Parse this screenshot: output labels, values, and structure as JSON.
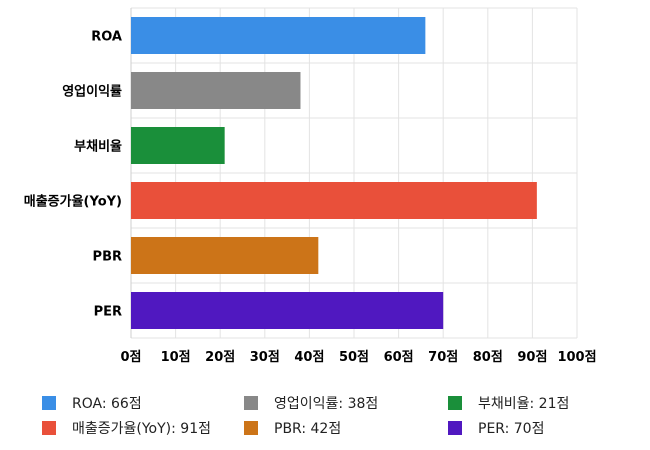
{
  "chart_data": {
    "type": "bar",
    "orientation": "horizontal",
    "categories": [
      "ROA",
      "영업이익률",
      "부채비율",
      "매출증가율(YoY)",
      "PBR",
      "PER"
    ],
    "values": [
      66,
      38,
      21,
      91,
      42,
      70
    ],
    "colors": [
      "#3a8ee6",
      "#888888",
      "#1a8f3a",
      "#e9503a",
      "#cc7418",
      "#5018c0"
    ],
    "xlim": [
      0,
      100
    ],
    "xticks": [
      "0점",
      "10점",
      "20점",
      "30점",
      "40점",
      "50점",
      "60점",
      "70점",
      "80점",
      "90점",
      "100점"
    ],
    "grid": true,
    "legend_position": "bottom",
    "legend": [
      {
        "label": "ROA: 66점",
        "color": "#3a8ee6"
      },
      {
        "label": "영업이익률: 38점",
        "color": "#888888"
      },
      {
        "label": "부채비율: 21점",
        "color": "#1a8f3a"
      },
      {
        "label": "매출증가율(YoY): 91점",
        "color": "#e9503a"
      },
      {
        "label": "PBR: 42점",
        "color": "#cc7418"
      },
      {
        "label": "PER: 70점",
        "color": "#5018c0"
      }
    ]
  }
}
